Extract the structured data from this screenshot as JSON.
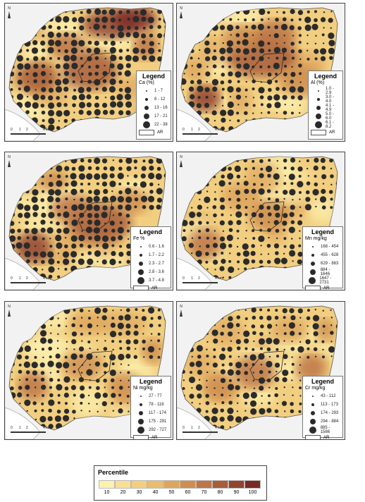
{
  "panels": [
    {
      "element": "Ca",
      "legend_title": "Legend",
      "legend_unit": "Ca (%)",
      "classes": [
        "1 - 7",
        "8 - 12",
        "13 - 16",
        "17 - 21",
        "22 - 38"
      ],
      "ar_label": "AR",
      "scale": [
        "0",
        "1",
        "2",
        "4 km"
      ]
    },
    {
      "element": "Al",
      "legend_title": "Legend",
      "legend_unit": "Al (%)",
      "classes": [
        "1.0 - 2.9",
        "3.0 - 4.0",
        "4.1 - 4.9",
        "5.0 - 6.0",
        "6.1 - 8.2"
      ],
      "ar_label": "AR",
      "scale": [
        "0",
        "1",
        "2",
        "4 km"
      ]
    },
    {
      "element": "Fe",
      "legend_title": "Legend",
      "legend_unit": "Fe %",
      "classes": [
        "0.6 - 1.6",
        "1.7 - 2.2",
        "2.3 - 2.7",
        "2.8 - 3.6",
        "3.7 - 4.8"
      ],
      "ar_label": "AR",
      "scale": [
        "0",
        "1",
        "2",
        "4 km"
      ]
    },
    {
      "element": "Mn",
      "legend_title": "Legend",
      "legend_unit": "Mn mg/kg",
      "classes": [
        "168 - 454",
        "455 - 628",
        "629 - 883",
        "884 - 1646",
        "1647 - 2731"
      ],
      "ar_label": "AR",
      "scale": [
        "0",
        "1",
        "2",
        "4 km"
      ]
    },
    {
      "element": "Ni",
      "legend_title": "Legend",
      "legend_unit": "Ni mg/kg",
      "classes": [
        "27 - 77",
        "78 - 116",
        "117 - 174",
        "175 - 291",
        "292 - 727"
      ],
      "ar_label": "AR",
      "scale": [
        "0",
        "1",
        "2",
        "4 km"
      ]
    },
    {
      "element": "Cr",
      "legend_title": "Legend",
      "legend_unit": "Cr mg/kg",
      "classes": [
        "43 - 112",
        "113 - 173",
        "174 - 293",
        "294 - 884",
        "885 - 1586"
      ],
      "ar_label": "AR",
      "scale": [
        "0",
        "1",
        "2",
        "4 km"
      ]
    }
  ],
  "north_label": "N",
  "percentile_legend": {
    "title": "Percentile",
    "labels": [
      "10",
      "20",
      "30",
      "40",
      "50",
      "60",
      "70",
      "80",
      "90",
      "100"
    ],
    "colors": [
      "#fdf1b0",
      "#f8df93",
      "#f2cf80",
      "#e9bd6e",
      "#dea65d",
      "#cf8e4f",
      "#bd7646",
      "#a85d3b",
      "#924431",
      "#7a2a25"
    ]
  }
}
